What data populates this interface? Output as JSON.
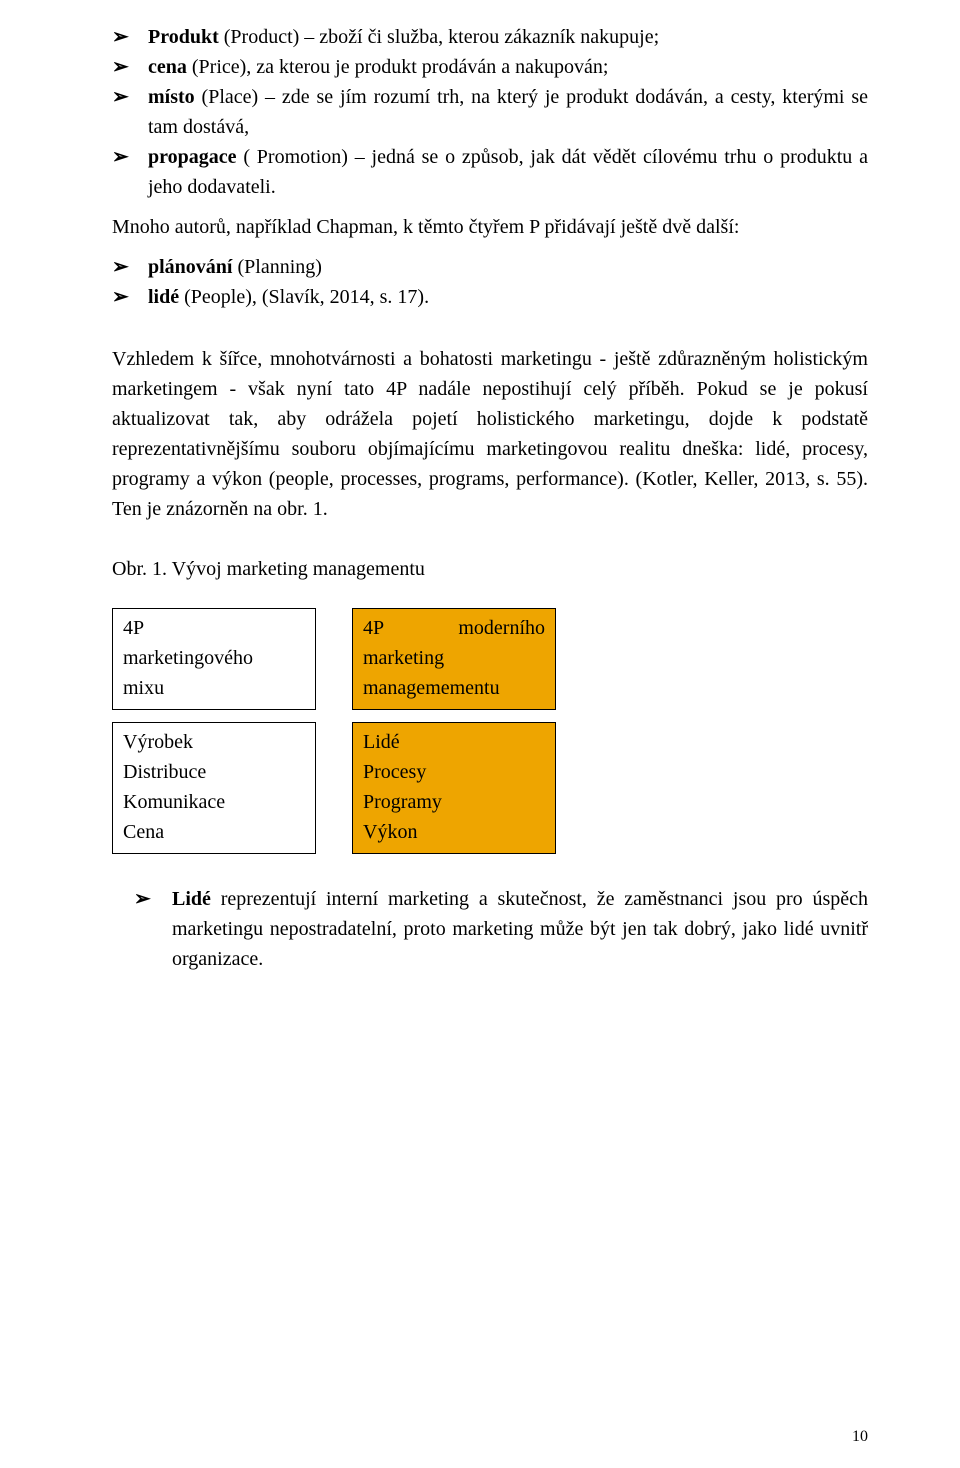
{
  "colors": {
    "text": "#000000",
    "background": "#ffffff",
    "box_border": "#000000",
    "box_highlight_fill": "#eea500"
  },
  "arrow_glyph": "➢",
  "list1": [
    {
      "bold": "Produkt",
      "rest": " (Product) – zboží či služba, kterou zákazník nakupuje;"
    },
    {
      "bold": "cena",
      "rest": " (Price), za kterou je produkt prodáván a nakupován;"
    },
    {
      "bold": "místo",
      "rest": " (Place) – zde se jím rozumí trh, na který je produkt dodáván, a cesty, kterými se tam dostává,"
    },
    {
      "bold": "propagace",
      "rest": " ( Promotion) – jedná se o způsob, jak dát vědět cílovému trhu o produktu a jeho dodavateli."
    }
  ],
  "para1": "Mnoho autorů, například Chapman, k těmto čtyřem P přidávají ještě dvě další:",
  "list2": [
    {
      "bold": "plánování",
      "rest": " (Planning)"
    },
    {
      "bold": "lidé",
      "rest": " (People), (Slavík, 2014, s. 17)."
    }
  ],
  "para2": "Vzhledem k šířce, mnohotvárnosti a bohatosti marketingu - ještě zdůrazněným holistickým marketingem - však nyní tato 4P nadále nepostihují celý příběh. Pokud se je pokusí aktualizovat tak, aby odrážela pojetí holistického marketingu, dojde k podstatě reprezentativnějšímu souboru objímajícímu marketingovou realitu dneška: lidé, procesy, programy a výkon (people, processes, programs, performance). (Kotler, Keller, 2013, s. 55). Ten je znázorněn na obr. 1.",
  "fig_caption": "Obr. 1. Vývoj marketing managementu",
  "fig": {
    "left_header": {
      "l1_a": "4P",
      "l2": "marketingového",
      "l3": "mixu"
    },
    "right_header": {
      "l1_a": "4P",
      "l1_b": "moderního",
      "l2": "marketing",
      "l3": "managemementu"
    },
    "left_items": [
      "Výrobek",
      "Distribuce",
      "Komunikace",
      "Cena"
    ],
    "right_items": [
      "Lidé",
      "Procesy",
      "Programy",
      "Výkon"
    ]
  },
  "list3": [
    {
      "bold": "Lidé",
      "rest": " reprezentují interní marketing a skutečnost, že zaměstnanci jsou pro úspěch marketingu nepostradatelní, proto marketing může být jen tak dobrý, jako lidé uvnitř organizace."
    }
  ],
  "page_number": "10"
}
